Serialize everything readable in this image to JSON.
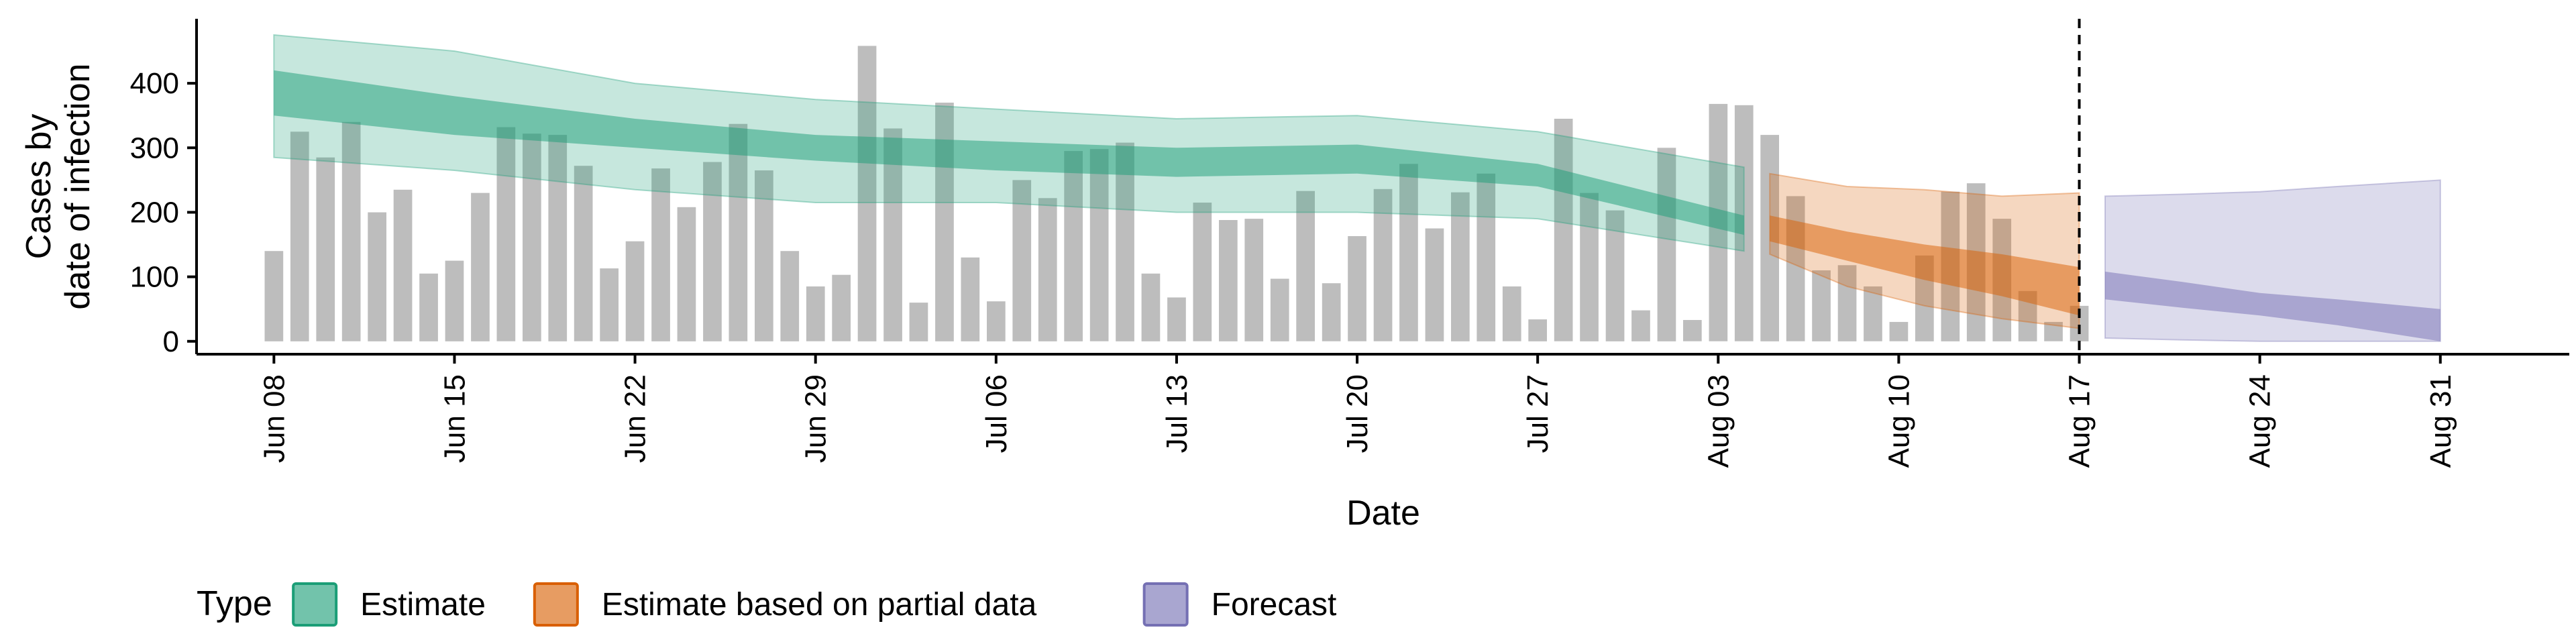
{
  "chart_data": {
    "type": "bar",
    "xlabel": "Date",
    "ylabel": [
      "Cases by",
      "date of infection"
    ],
    "xlim": [
      "2020-06-05",
      "2020-09-05"
    ],
    "ylim": [
      -20,
      500
    ],
    "yticks": [
      0,
      100,
      200,
      300,
      400
    ],
    "xticks": [
      {
        "date": "2020-06-08",
        "label": "Jun 08"
      },
      {
        "date": "2020-06-15",
        "label": "Jun 15"
      },
      {
        "date": "2020-06-22",
        "label": "Jun 22"
      },
      {
        "date": "2020-06-29",
        "label": "Jun 29"
      },
      {
        "date": "2020-07-06",
        "label": "Jul 06"
      },
      {
        "date": "2020-07-13",
        "label": "Jul 13"
      },
      {
        "date": "2020-07-20",
        "label": "Jul 20"
      },
      {
        "date": "2020-07-27",
        "label": "Jul 27"
      },
      {
        "date": "2020-08-03",
        "label": "Aug 03"
      },
      {
        "date": "2020-08-10",
        "label": "Aug 10"
      },
      {
        "date": "2020-08-17",
        "label": "Aug 17"
      },
      {
        "date": "2020-08-24",
        "label": "Aug 24"
      },
      {
        "date": "2020-08-31",
        "label": "Aug 31"
      }
    ],
    "vline_date": "2020-08-17",
    "bars": {
      "start_date": "2020-06-08",
      "color": "#bdbdbd",
      "values": [
        140,
        325,
        285,
        340,
        200,
        235,
        105,
        125,
        230,
        332,
        322,
        320,
        272,
        113,
        155,
        268,
        208,
        278,
        337,
        265,
        140,
        85,
        103,
        458,
        330,
        60,
        370,
        130,
        62,
        250,
        222,
        295,
        298,
        308,
        105,
        68,
        215,
        188,
        190,
        97,
        233,
        90,
        163,
        236,
        275,
        175,
        231,
        260,
        85,
        34,
        345,
        230,
        203,
        48,
        300,
        33,
        368,
        366,
        320,
        225,
        110,
        118,
        85,
        30,
        133,
        232,
        245,
        190,
        78,
        30,
        55
      ]
    },
    "series": [
      {
        "name": "Estimate",
        "color": "#1b9e77",
        "dates": [
          "2020-06-08",
          "2020-06-15",
          "2020-06-22",
          "2020-06-29",
          "2020-07-06",
          "2020-07-13",
          "2020-07-20",
          "2020-07-27",
          "2020-08-04"
        ],
        "lower90": [
          285,
          265,
          235,
          215,
          215,
          200,
          200,
          190,
          140
        ],
        "lower50": [
          350,
          320,
          300,
          280,
          265,
          255,
          260,
          240,
          165
        ],
        "upper50": [
          420,
          380,
          345,
          320,
          310,
          300,
          305,
          275,
          195
        ],
        "upper90": [
          475,
          450,
          400,
          375,
          360,
          345,
          350,
          325,
          270
        ]
      },
      {
        "name": "Estimate based on partial data",
        "color": "#d95f02",
        "dates": [
          "2020-08-05",
          "2020-08-08",
          "2020-08-11",
          "2020-08-14",
          "2020-08-17"
        ],
        "lower90": [
          135,
          85,
          55,
          35,
          20
        ],
        "lower50": [
          155,
          125,
          95,
          70,
          40
        ],
        "upper50": [
          195,
          170,
          150,
          135,
          115
        ],
        "upper90": [
          260,
          240,
          235,
          225,
          230
        ]
      },
      {
        "name": "Forecast",
        "color": "#7570b3",
        "dates": [
          "2020-08-18",
          "2020-08-21",
          "2020-08-24",
          "2020-08-27",
          "2020-08-31"
        ],
        "lower90": [
          5,
          2,
          0,
          0,
          0
        ],
        "lower50": [
          65,
          52,
          40,
          25,
          0
        ],
        "upper50": [
          108,
          92,
          75,
          65,
          50
        ],
        "upper90": [
          225,
          228,
          232,
          240,
          250
        ]
      }
    ],
    "legend": {
      "title": "Type",
      "position": "bottom",
      "items": [
        "Estimate",
        "Estimate based on partial data",
        "Forecast"
      ]
    }
  }
}
